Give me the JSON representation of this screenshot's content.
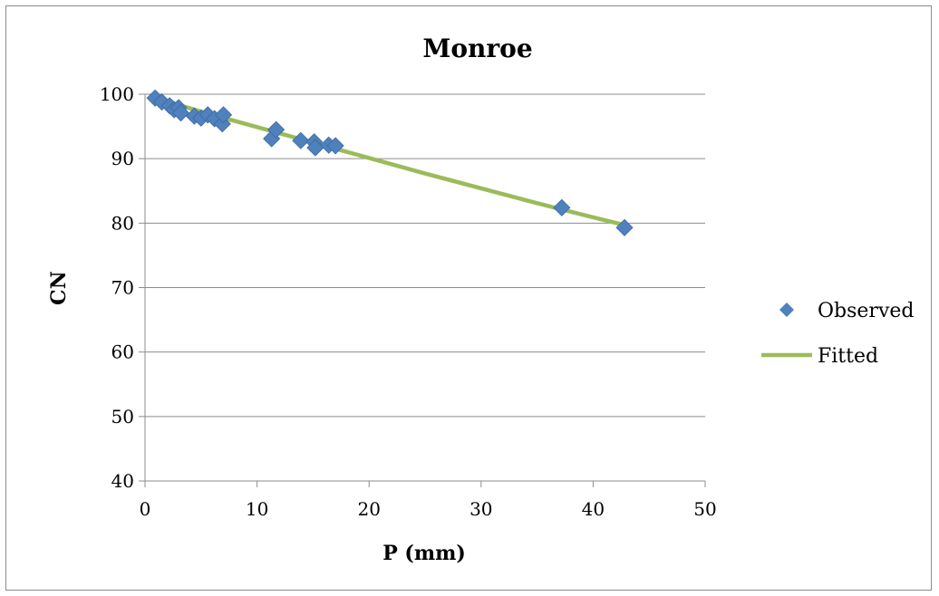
{
  "chart_data": {
    "type": "scatter",
    "title": "Monroe",
    "xlabel": "P (mm)",
    "ylabel": "CN",
    "xlim": [
      0,
      50
    ],
    "ylim": [
      40,
      100
    ],
    "xticks": [
      0,
      10,
      20,
      30,
      40,
      50
    ],
    "yticks": [
      40,
      50,
      60,
      70,
      80,
      90,
      100
    ],
    "grid": {
      "horizontal": true,
      "vertical": false
    },
    "legend_position": "right",
    "series": [
      {
        "name": "Observed",
        "kind": "marker",
        "marker": "diamond",
        "color": "#4f81bd",
        "points": [
          [
            0.9,
            99.4
          ],
          [
            1.5,
            98.8
          ],
          [
            2.2,
            98.2
          ],
          [
            2.6,
            97.6
          ],
          [
            3.0,
            97.9
          ],
          [
            3.2,
            97.1
          ],
          [
            4.4,
            96.6
          ],
          [
            5.0,
            96.3
          ],
          [
            5.6,
            96.8
          ],
          [
            6.2,
            96.2
          ],
          [
            6.9,
            95.4
          ],
          [
            7.0,
            96.8
          ],
          [
            11.3,
            93.1
          ],
          [
            11.7,
            94.5
          ],
          [
            13.9,
            92.8
          ],
          [
            15.1,
            92.6
          ],
          [
            15.2,
            91.7
          ],
          [
            16.4,
            92.1
          ],
          [
            17.0,
            92.0
          ],
          [
            37.2,
            82.4
          ],
          [
            42.8,
            79.3
          ]
        ]
      },
      {
        "name": "Fitted",
        "kind": "line",
        "color": "#9bbb59",
        "points": [
          [
            0.9,
            99.4
          ],
          [
            5,
            97.3
          ],
          [
            10,
            94.9
          ],
          [
            15,
            92.5
          ],
          [
            20,
            90.1
          ],
          [
            25,
            87.7
          ],
          [
            30,
            85.4
          ],
          [
            35,
            83.1
          ],
          [
            40,
            80.9
          ],
          [
            42.8,
            79.7
          ]
        ]
      }
    ]
  }
}
